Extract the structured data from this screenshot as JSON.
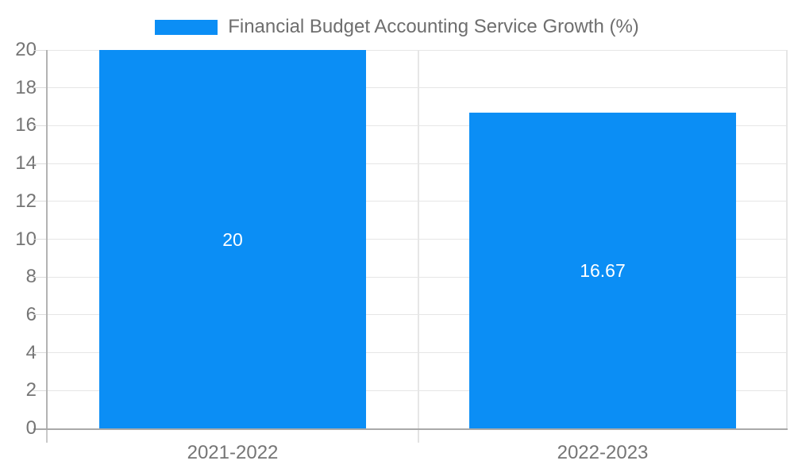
{
  "legend": {
    "label": "Financial Budget Accounting Service Growth (%)"
  },
  "chart_data": {
    "type": "bar",
    "title": "Financial Budget Accounting Service Growth (%)",
    "categories": [
      "2021-2022",
      "2022-2023"
    ],
    "values": [
      20,
      16.67
    ],
    "bar_value_labels": [
      "20",
      "16.67"
    ],
    "xlabel": "",
    "ylabel": "",
    "ylim": [
      0,
      20
    ],
    "yticks": [
      0,
      2,
      4,
      6,
      8,
      10,
      12,
      14,
      16,
      18,
      20
    ],
    "grid": true,
    "legend_position": "top",
    "colors": {
      "bar": "#0b8ef5",
      "bar_label": "#ffffff",
      "axis_text": "#757575",
      "legend_text": "#6e6e6e",
      "gridline": "#e6e6e6",
      "axis_line_y": "#b3b3b3",
      "axis_line_x": "#a9a9a9"
    }
  }
}
